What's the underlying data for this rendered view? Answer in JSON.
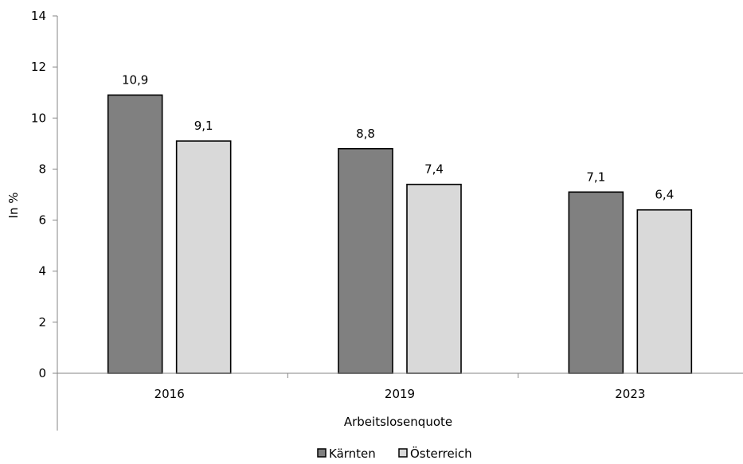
{
  "chart_data": {
    "type": "bar",
    "categories": [
      "2016",
      "2019",
      "2023"
    ],
    "series": [
      {
        "name": "Kärnten",
        "values": [
          10.9,
          8.8,
          7.1
        ],
        "labels": [
          "10,9",
          "8,8",
          "7,1"
        ],
        "color": "#808080"
      },
      {
        "name": "Österreich",
        "values": [
          9.1,
          7.4,
          6.4
        ],
        "labels": [
          "9,1",
          "7,4",
          "6,4"
        ],
        "color": "#d9d9d9"
      }
    ],
    "xlabel": "Arbeitslosenquote",
    "ylabel": "In %",
    "ylim": [
      0,
      14
    ],
    "yticks": [
      0,
      2,
      4,
      6,
      8,
      10,
      12,
      14
    ],
    "grid": false,
    "legend_position": "bottom"
  }
}
